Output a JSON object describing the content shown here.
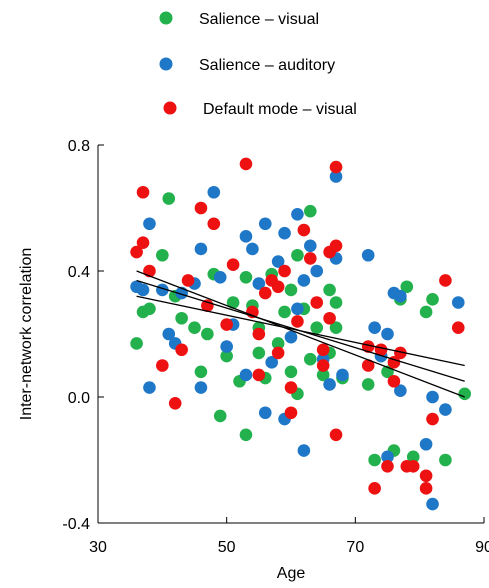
{
  "chart_data": {
    "type": "scatter",
    "title": "",
    "xlabel": "Age",
    "ylabel": "Inter-network correlation",
    "xlim": [
      30,
      90
    ],
    "ylim": [
      -0.4,
      0.8
    ],
    "xticks": [
      30,
      50,
      70,
      90
    ],
    "yticks": [
      -0.4,
      0.0,
      0.4,
      0.8
    ],
    "xtick_labels": [
      "30",
      "50",
      "70",
      "90"
    ],
    "ytick_labels": [
      "-0.4",
      "0.0",
      "0.4",
      "0.8"
    ],
    "grid": false,
    "legend_position": "top",
    "series": [
      {
        "name": "Salience – visual",
        "color": "#22b14c",
        "points": [
          [
            36,
            0.17
          ],
          [
            37,
            0.27
          ],
          [
            38,
            0.28
          ],
          [
            40,
            0.45
          ],
          [
            41,
            0.63
          ],
          [
            42,
            0.32
          ],
          [
            43,
            0.25
          ],
          [
            45,
            0.22
          ],
          [
            46,
            0.08
          ],
          [
            47,
            0.2
          ],
          [
            48,
            0.39
          ],
          [
            49,
            -0.06
          ],
          [
            50,
            0.13
          ],
          [
            51,
            0.3
          ],
          [
            52,
            0.05
          ],
          [
            53,
            0.38
          ],
          [
            53,
            -0.12
          ],
          [
            54,
            0.29
          ],
          [
            55,
            0.22
          ],
          [
            55,
            0.14
          ],
          [
            56,
            0.06
          ],
          [
            57,
            0.39
          ],
          [
            58,
            0.17
          ],
          [
            59,
            0.27
          ],
          [
            60,
            0.08
          ],
          [
            60,
            0.34
          ],
          [
            61,
            0.45
          ],
          [
            61,
            0.01
          ],
          [
            62,
            0.28
          ],
          [
            63,
            0.59
          ],
          [
            63,
            0.12
          ],
          [
            64,
            0.22
          ],
          [
            65,
            0.07
          ],
          [
            66,
            0.34
          ],
          [
            66,
            0.14
          ],
          [
            67,
            0.22
          ],
          [
            67,
            0.3
          ],
          [
            68,
            0.06
          ],
          [
            72,
            0.04
          ],
          [
            73,
            -0.2
          ],
          [
            74,
            0.13
          ],
          [
            75,
            0.08
          ],
          [
            76,
            -0.17
          ],
          [
            77,
            0.31
          ],
          [
            78,
            0.35
          ],
          [
            79,
            -0.19
          ],
          [
            81,
            0.27
          ],
          [
            82,
            0.31
          ],
          [
            84,
            -0.2
          ],
          [
            87,
            0.01
          ]
        ]
      },
      {
        "name": "Salience – auditory",
        "color": "#1f77c8",
        "points": [
          [
            36,
            0.35
          ],
          [
            37,
            0.34
          ],
          [
            38,
            0.55
          ],
          [
            38,
            0.03
          ],
          [
            40,
            0.34
          ],
          [
            41,
            0.2
          ],
          [
            42,
            0.17
          ],
          [
            43,
            0.33
          ],
          [
            45,
            0.36
          ],
          [
            46,
            0.47
          ],
          [
            46,
            0.03
          ],
          [
            48,
            0.65
          ],
          [
            49,
            0.38
          ],
          [
            50,
            0.16
          ],
          [
            51,
            0.23
          ],
          [
            53,
            0.51
          ],
          [
            53,
            0.07
          ],
          [
            54,
            0.47
          ],
          [
            55,
            0.36
          ],
          [
            56,
            0.55
          ],
          [
            56,
            -0.05
          ],
          [
            57,
            0.11
          ],
          [
            58,
            0.43
          ],
          [
            59,
            -0.07
          ],
          [
            59,
            0.52
          ],
          [
            60,
            0.19
          ],
          [
            61,
            0.58
          ],
          [
            61,
            0.28
          ],
          [
            62,
            -0.17
          ],
          [
            62,
            0.37
          ],
          [
            63,
            0.48
          ],
          [
            64,
            0.4
          ],
          [
            65,
            0.12
          ],
          [
            66,
            0.04
          ],
          [
            67,
            0.7
          ],
          [
            67,
            0.44
          ],
          [
            68,
            0.07
          ],
          [
            72,
            0.45
          ],
          [
            73,
            0.22
          ],
          [
            74,
            0.13
          ],
          [
            75,
            0.2
          ],
          [
            75,
            -0.19
          ],
          [
            76,
            0.33
          ],
          [
            77,
            0.32
          ],
          [
            81,
            -0.15
          ],
          [
            82,
            -0.34
          ],
          [
            84,
            -0.04
          ],
          [
            86,
            0.3
          ],
          [
            82,
            0.0
          ],
          [
            77,
            0.02
          ]
        ]
      },
      {
        "name": "Default mode – visual",
        "color": "#ee1111",
        "points": [
          [
            36,
            0.46
          ],
          [
            37,
            0.65
          ],
          [
            37,
            0.49
          ],
          [
            38,
            0.4
          ],
          [
            40,
            0.1
          ],
          [
            42,
            -0.02
          ],
          [
            43,
            0.15
          ],
          [
            44,
            0.37
          ],
          [
            46,
            0.6
          ],
          [
            47,
            0.29
          ],
          [
            48,
            0.55
          ],
          [
            50,
            0.23
          ],
          [
            51,
            0.42
          ],
          [
            53,
            0.74
          ],
          [
            54,
            0.27
          ],
          [
            55,
            0.2
          ],
          [
            55,
            0.07
          ],
          [
            56,
            0.33
          ],
          [
            57,
            0.37
          ],
          [
            58,
            0.35
          ],
          [
            58,
            0.14
          ],
          [
            59,
            0.4
          ],
          [
            60,
            -0.05
          ],
          [
            60,
            0.03
          ],
          [
            61,
            0.24
          ],
          [
            62,
            0.53
          ],
          [
            63,
            0.44
          ],
          [
            64,
            0.3
          ],
          [
            65,
            0.15
          ],
          [
            66,
            0.25
          ],
          [
            66,
            0.46
          ],
          [
            67,
            0.48
          ],
          [
            67,
            0.73
          ],
          [
            67,
            -0.12
          ],
          [
            72,
            0.16
          ],
          [
            73,
            -0.29
          ],
          [
            74,
            0.15
          ],
          [
            75,
            -0.22
          ],
          [
            76,
            0.11
          ],
          [
            77,
            0.14
          ],
          [
            78,
            -0.22
          ],
          [
            79,
            -0.22
          ],
          [
            81,
            -0.25
          ],
          [
            81,
            -0.29
          ],
          [
            82,
            -0.07
          ],
          [
            84,
            0.37
          ],
          [
            86,
            0.22
          ],
          [
            72,
            0.1
          ],
          [
            76,
            0.05
          ],
          [
            65,
            0.1
          ]
        ]
      }
    ],
    "trend_lines": [
      {
        "x": [
          36,
          87
        ],
        "y": [
          0.4,
          0.0
        ]
      },
      {
        "x": [
          36,
          87
        ],
        "y": [
          0.37,
          0.05
        ]
      },
      {
        "x": [
          36,
          87
        ],
        "y": [
          0.32,
          0.1
        ]
      }
    ]
  }
}
